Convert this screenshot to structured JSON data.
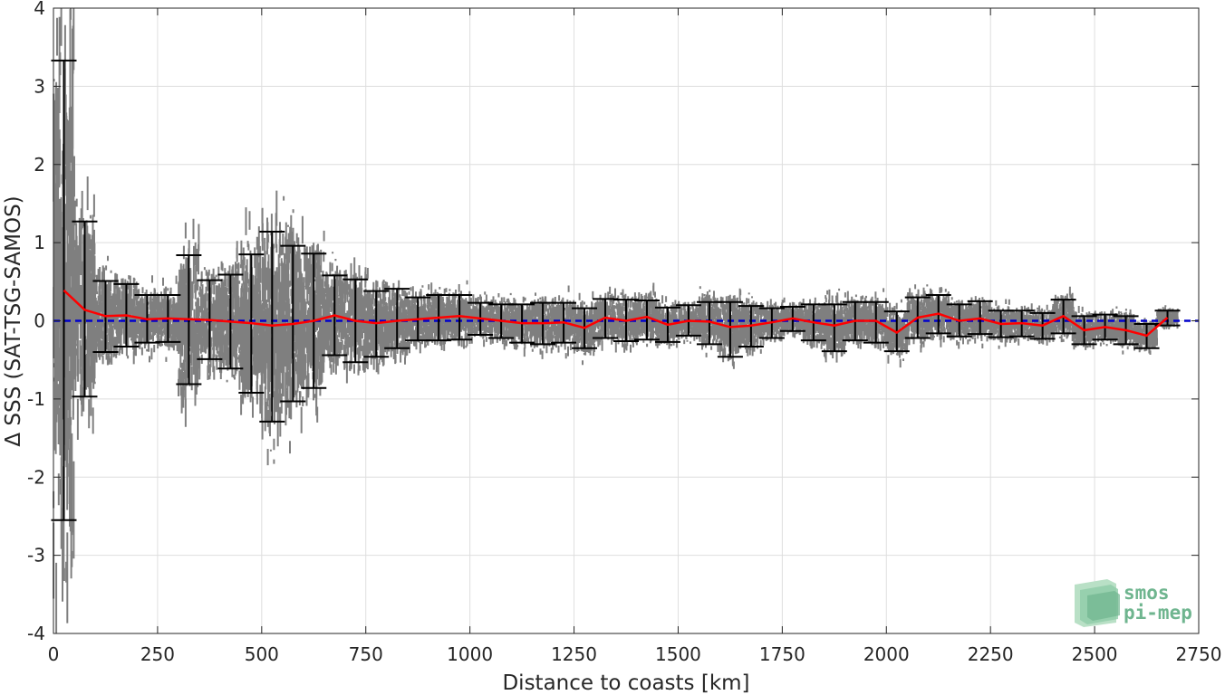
{
  "chart_data": {
    "type": "scatter",
    "title": "",
    "xlabel": "Distance to coasts [km]",
    "ylabel": "Δ SSS (SAT-TSG-SAMOS)",
    "xlim": [
      0,
      2750
    ],
    "ylim": [
      -4,
      4
    ],
    "xticks": [
      "0",
      "250",
      "500",
      "750",
      "1000",
      "1250",
      "1500",
      "1750",
      "2000",
      "2250",
      "2500",
      "2750"
    ],
    "yticks": [
      "-4",
      "-3",
      "-2",
      "-1",
      "0",
      "1",
      "2",
      "3",
      "4"
    ],
    "grid": true,
    "reference_line": {
      "y": 0,
      "color": "#0000cc",
      "style": "dashed"
    },
    "scatter_color": "#7f7f7f",
    "mean_color": "#ff0000",
    "errorbar_color": "#000000",
    "bins": {
      "x": [
        25,
        75,
        125,
        175,
        225,
        275,
        325,
        375,
        425,
        475,
        525,
        575,
        625,
        675,
        725,
        775,
        825,
        875,
        925,
        975,
        1025,
        1075,
        1125,
        1175,
        1225,
        1275,
        1325,
        1375,
        1425,
        1475,
        1525,
        1575,
        1625,
        1675,
        1725,
        1775,
        1825,
        1875,
        1925,
        1975,
        2025,
        2075,
        2125,
        2175,
        2225,
        2275,
        2325,
        2375,
        2425,
        2475,
        2525,
        2575,
        2625,
        2675
      ],
      "mean": [
        0.39,
        0.14,
        0.06,
        0.07,
        0.02,
        0.03,
        0.02,
        0.01,
        -0.01,
        -0.03,
        -0.06,
        -0.04,
        0.0,
        0.07,
        0.0,
        -0.03,
        0.0,
        0.02,
        0.04,
        0.06,
        0.03,
        0.0,
        -0.03,
        -0.03,
        -0.02,
        -0.09,
        0.04,
        0.0,
        0.05,
        -0.05,
        0.0,
        -0.01,
        -0.08,
        -0.06,
        -0.02,
        0.03,
        -0.02,
        -0.06,
        0.0,
        0.0,
        -0.15,
        0.04,
        0.09,
        0.0,
        0.03,
        -0.04,
        -0.03,
        -0.06,
        0.06,
        -0.12,
        -0.08,
        -0.12,
        -0.19,
        0.04
      ],
      "upper": [
        3.33,
        1.27,
        0.51,
        0.47,
        0.33,
        0.33,
        0.84,
        0.52,
        0.59,
        0.85,
        1.14,
        0.96,
        0.86,
        0.58,
        0.53,
        0.38,
        0.41,
        0.3,
        0.33,
        0.33,
        0.23,
        0.21,
        0.21,
        0.23,
        0.23,
        0.16,
        0.28,
        0.27,
        0.26,
        0.17,
        0.2,
        0.24,
        0.24,
        0.19,
        0.16,
        0.18,
        0.21,
        0.21,
        0.24,
        0.24,
        0.12,
        0.3,
        0.33,
        0.21,
        0.25,
        0.13,
        0.13,
        0.1,
        0.27,
        0.06,
        0.08,
        0.06,
        -0.04,
        0.13
      ],
      "lower": [
        -2.55,
        -0.97,
        -0.4,
        -0.33,
        -0.28,
        -0.27,
        -0.81,
        -0.49,
        -0.61,
        -0.92,
        -1.29,
        -1.03,
        -0.86,
        -0.44,
        -0.53,
        -0.46,
        -0.35,
        -0.25,
        -0.25,
        -0.24,
        -0.18,
        -0.22,
        -0.28,
        -0.3,
        -0.28,
        -0.35,
        -0.22,
        -0.26,
        -0.24,
        -0.27,
        -0.19,
        -0.3,
        -0.46,
        -0.33,
        -0.22,
        -0.13,
        -0.25,
        -0.39,
        -0.25,
        -0.28,
        -0.39,
        -0.22,
        -0.16,
        -0.2,
        -0.17,
        -0.21,
        -0.2,
        -0.23,
        -0.16,
        -0.3,
        -0.24,
        -0.3,
        -0.35,
        -0.06
      ]
    }
  },
  "logo": {
    "line1": "smos",
    "line2": "pi-mep",
    "color": "#6fb58f"
  }
}
